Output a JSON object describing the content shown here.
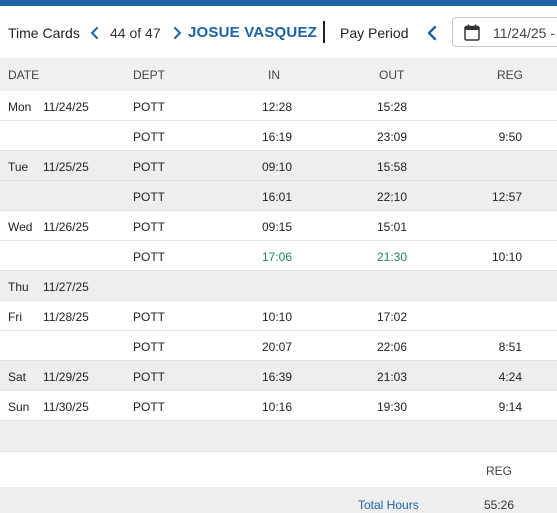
{
  "header": {
    "title": "Time Cards",
    "count": "44 of 47",
    "employee": "JOSUE VASQUEZ",
    "pay_period_label": "Pay Period",
    "date": "11/24/25 -"
  },
  "columns": {
    "date": "DATE",
    "dept": "DEPT",
    "in": "IN",
    "out": "OUT",
    "reg": "REG"
  },
  "rows": [
    {
      "dow": "Mon",
      "date": "11/24/25",
      "dept": "POTT",
      "in": "12:28",
      "out": "15:28",
      "reg": "",
      "shade": false,
      "green": false
    },
    {
      "dow": "",
      "date": "",
      "dept": "POTT",
      "in": "16:19",
      "out": "23:09",
      "reg": "9:50",
      "shade": false,
      "green": false
    },
    {
      "dow": "Tue",
      "date": "11/25/25",
      "dept": "POTT",
      "in": "09:10",
      "out": "15:58",
      "reg": "",
      "shade": true,
      "green": false
    },
    {
      "dow": "",
      "date": "",
      "dept": "POTT",
      "in": "16:01",
      "out": "22:10",
      "reg": "12:57",
      "shade": true,
      "green": false
    },
    {
      "dow": "Wed",
      "date": "11/26/25",
      "dept": "POTT",
      "in": "09:15",
      "out": "15:01",
      "reg": "",
      "shade": false,
      "green": false
    },
    {
      "dow": "",
      "date": "",
      "dept": "POTT",
      "in": "17:06",
      "out": "21:30",
      "reg": "10:10",
      "shade": false,
      "green": true
    },
    {
      "dow": "Thu",
      "date": "11/27/25",
      "dept": "",
      "in": "",
      "out": "",
      "reg": "",
      "shade": true,
      "green": false
    },
    {
      "dow": "Fri",
      "date": "11/28/25",
      "dept": "POTT",
      "in": "10:10",
      "out": "17:02",
      "reg": "",
      "shade": false,
      "green": false
    },
    {
      "dow": "",
      "date": "",
      "dept": "POTT",
      "in": "20:07",
      "out": "22:06",
      "reg": "8:51",
      "shade": false,
      "green": false
    },
    {
      "dow": "Sat",
      "date": "11/29/25",
      "dept": "POTT",
      "in": "16:39",
      "out": "21:03",
      "reg": "4:24",
      "shade": true,
      "green": false
    },
    {
      "dow": "Sun",
      "date": "11/30/25",
      "dept": "POTT",
      "in": "10:16",
      "out": "19:30",
      "reg": "9:14",
      "shade": false,
      "green": false
    }
  ],
  "summary": {
    "reg_header": "REG",
    "total_label": "Total Hours",
    "total_value": "55:26"
  },
  "colors": {
    "brand_blue": "#1d62a5",
    "edited_green": "#1e8a55"
  },
  "icons": [
    "chevron-left-icon",
    "chevron-right-icon",
    "calendar-icon"
  ]
}
